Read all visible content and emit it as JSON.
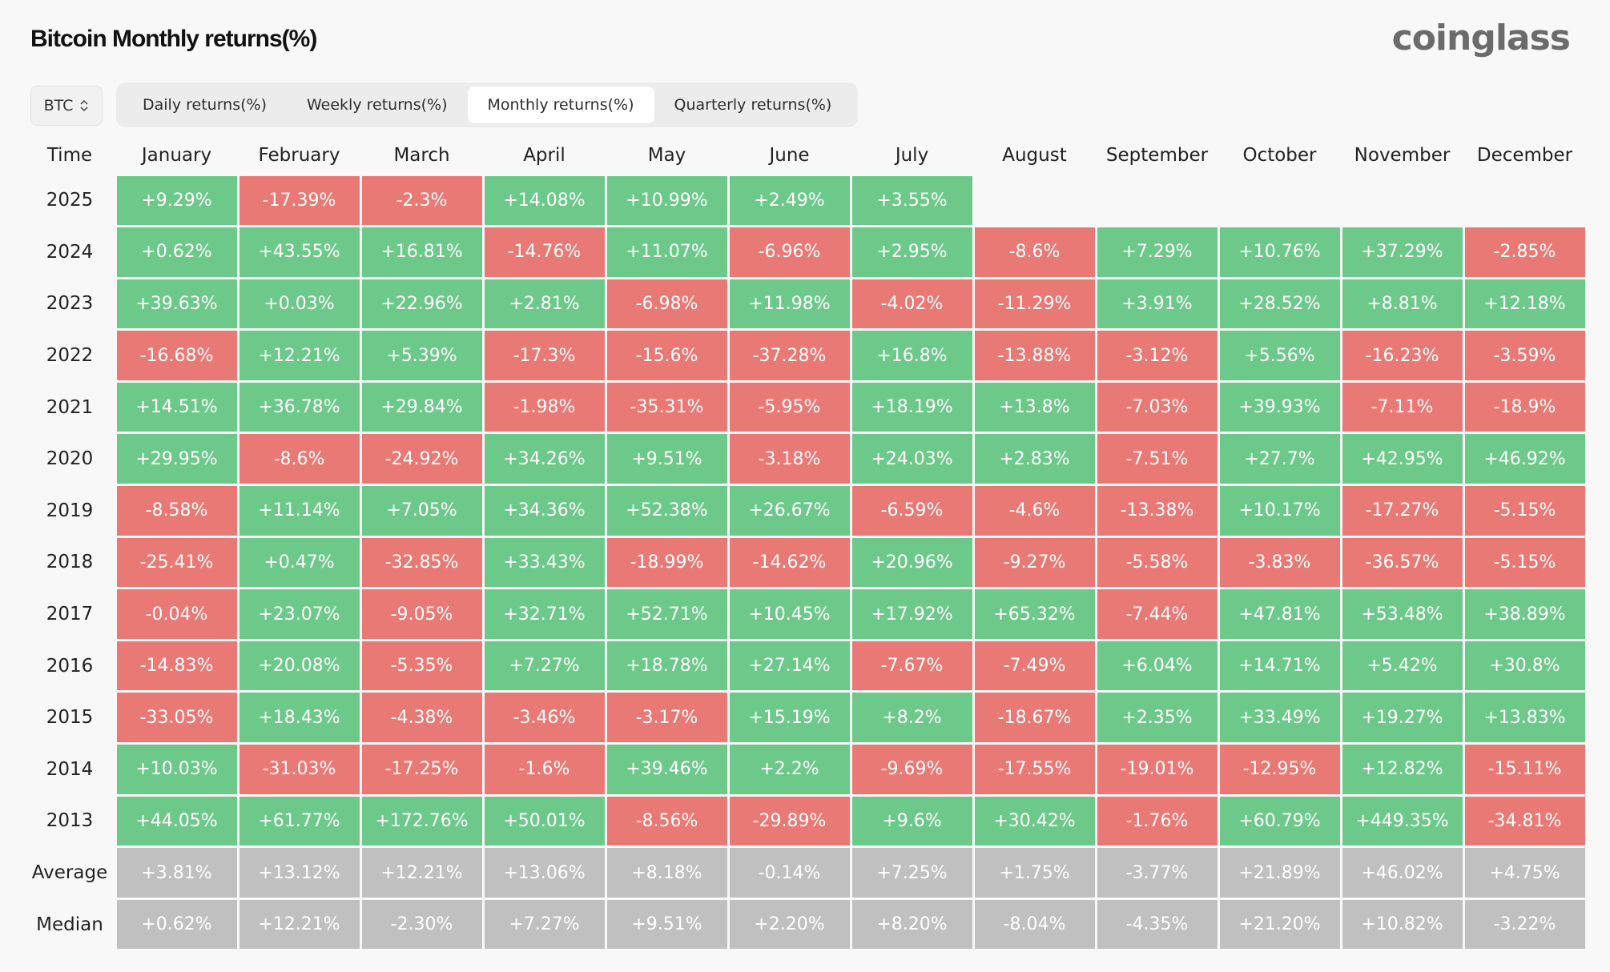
{
  "title": "Bitcoin Monthly returns(%)",
  "logo": "coinglass",
  "selector": {
    "value": "BTC",
    "icon": "updown-chevron-icon"
  },
  "tabs": [
    {
      "label": "Daily returns(%)",
      "active": false
    },
    {
      "label": "Weekly returns(%)",
      "active": false
    },
    {
      "label": "Monthly returns(%)",
      "active": true
    },
    {
      "label": "Quarterly returns(%)",
      "active": false
    }
  ],
  "colors": {
    "positive": "#6dc98a",
    "negative": "#e97975",
    "summary": "#c0c0c0",
    "logo": "#6b6b6b"
  },
  "table": {
    "time_header": "Time",
    "months": [
      "January",
      "February",
      "March",
      "April",
      "May",
      "June",
      "July",
      "August",
      "September",
      "October",
      "November",
      "December"
    ],
    "rows": [
      {
        "year": "2025",
        "values": [
          "+9.29%",
          "-17.39%",
          "-2.3%",
          "+14.08%",
          "+10.99%",
          "+2.49%",
          "+3.55%",
          "",
          "",
          "",
          "",
          ""
        ]
      },
      {
        "year": "2024",
        "values": [
          "+0.62%",
          "+43.55%",
          "+16.81%",
          "-14.76%",
          "+11.07%",
          "-6.96%",
          "+2.95%",
          "-8.6%",
          "+7.29%",
          "+10.76%",
          "+37.29%",
          "-2.85%"
        ]
      },
      {
        "year": "2023",
        "values": [
          "+39.63%",
          "+0.03%",
          "+22.96%",
          "+2.81%",
          "-6.98%",
          "+11.98%",
          "-4.02%",
          "-11.29%",
          "+3.91%",
          "+28.52%",
          "+8.81%",
          "+12.18%"
        ]
      },
      {
        "year": "2022",
        "values": [
          "-16.68%",
          "+12.21%",
          "+5.39%",
          "-17.3%",
          "-15.6%",
          "-37.28%",
          "+16.8%",
          "-13.88%",
          "-3.12%",
          "+5.56%",
          "-16.23%",
          "-3.59%"
        ]
      },
      {
        "year": "2021",
        "values": [
          "+14.51%",
          "+36.78%",
          "+29.84%",
          "-1.98%",
          "-35.31%",
          "-5.95%",
          "+18.19%",
          "+13.8%",
          "-7.03%",
          "+39.93%",
          "-7.11%",
          "-18.9%"
        ]
      },
      {
        "year": "2020",
        "values": [
          "+29.95%",
          "-8.6%",
          "-24.92%",
          "+34.26%",
          "+9.51%",
          "-3.18%",
          "+24.03%",
          "+2.83%",
          "-7.51%",
          "+27.7%",
          "+42.95%",
          "+46.92%"
        ]
      },
      {
        "year": "2019",
        "values": [
          "-8.58%",
          "+11.14%",
          "+7.05%",
          "+34.36%",
          "+52.38%",
          "+26.67%",
          "-6.59%",
          "-4.6%",
          "-13.38%",
          "+10.17%",
          "-17.27%",
          "-5.15%"
        ]
      },
      {
        "year": "2018",
        "values": [
          "-25.41%",
          "+0.47%",
          "-32.85%",
          "+33.43%",
          "-18.99%",
          "-14.62%",
          "+20.96%",
          "-9.27%",
          "-5.58%",
          "-3.83%",
          "-36.57%",
          "-5.15%"
        ]
      },
      {
        "year": "2017",
        "values": [
          "-0.04%",
          "+23.07%",
          "-9.05%",
          "+32.71%",
          "+52.71%",
          "+10.45%",
          "+17.92%",
          "+65.32%",
          "-7.44%",
          "+47.81%",
          "+53.48%",
          "+38.89%"
        ]
      },
      {
        "year": "2016",
        "values": [
          "-14.83%",
          "+20.08%",
          "-5.35%",
          "+7.27%",
          "+18.78%",
          "+27.14%",
          "-7.67%",
          "-7.49%",
          "+6.04%",
          "+14.71%",
          "+5.42%",
          "+30.8%"
        ]
      },
      {
        "year": "2015",
        "values": [
          "-33.05%",
          "+18.43%",
          "-4.38%",
          "-3.46%",
          "-3.17%",
          "+15.19%",
          "+8.2%",
          "-18.67%",
          "+2.35%",
          "+33.49%",
          "+19.27%",
          "+13.83%"
        ]
      },
      {
        "year": "2014",
        "values": [
          "+10.03%",
          "-31.03%",
          "-17.25%",
          "-1.6%",
          "+39.46%",
          "+2.2%",
          "-9.69%",
          "-17.55%",
          "-19.01%",
          "-12.95%",
          "+12.82%",
          "-15.11%"
        ]
      },
      {
        "year": "2013",
        "values": [
          "+44.05%",
          "+61.77%",
          "+172.76%",
          "+50.01%",
          "-8.56%",
          "-29.89%",
          "+9.6%",
          "+30.42%",
          "-1.76%",
          "+60.79%",
          "+449.35%",
          "-34.81%"
        ]
      }
    ],
    "summary_rows": [
      {
        "label": "Average",
        "values": [
          "+3.81%",
          "+13.12%",
          "+12.21%",
          "+13.06%",
          "+8.18%",
          "-0.14%",
          "+7.25%",
          "+1.75%",
          "-3.77%",
          "+21.89%",
          "+46.02%",
          "+4.75%"
        ]
      },
      {
        "label": "Median",
        "values": [
          "+0.62%",
          "+12.21%",
          "-2.30%",
          "+7.27%",
          "+9.51%",
          "+2.20%",
          "+8.20%",
          "-8.04%",
          "-4.35%",
          "+21.20%",
          "+10.82%",
          "-3.22%"
        ]
      }
    ]
  }
}
